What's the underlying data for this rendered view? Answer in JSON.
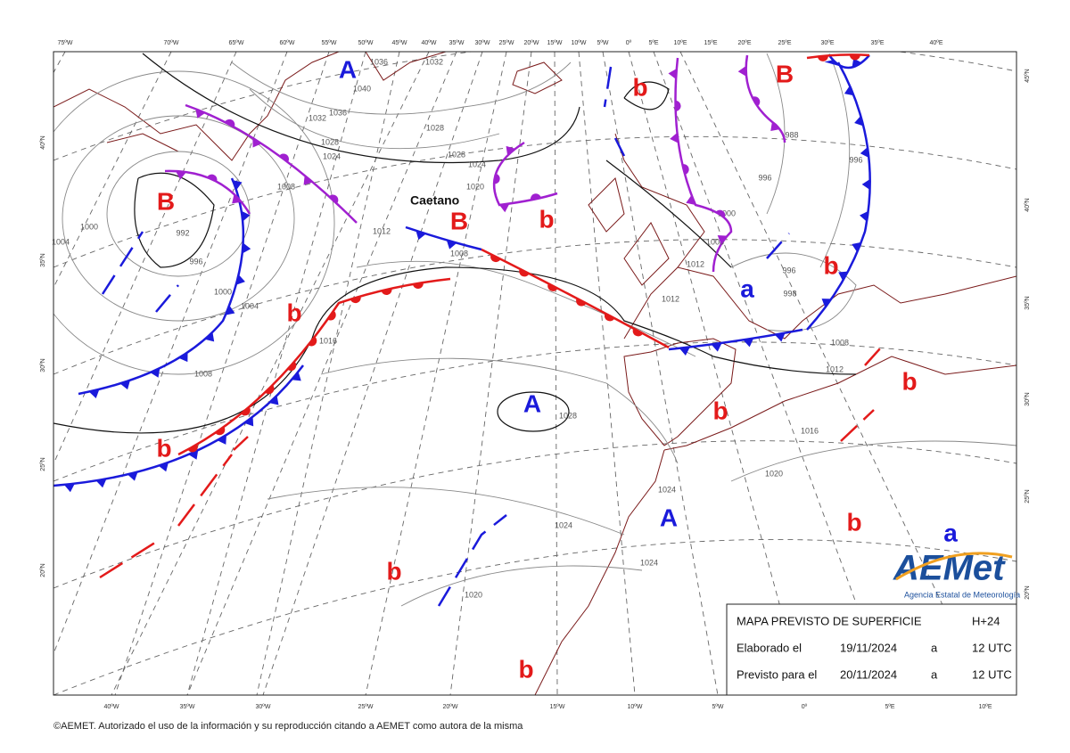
{
  "top_axis": [
    "75ºW",
    "70ºW",
    "65ºW",
    "60ºW",
    "55ºW",
    "50ºW",
    "45ºW",
    "40ºW",
    "35ºW",
    "30ºW",
    "25ºW",
    "20ºW",
    "15ºW",
    "10ºW",
    "5ºW",
    "0º",
    "5ºE",
    "10ºE",
    "15ºE",
    "20ºE",
    "25ºE",
    "30ºE",
    "35ºE",
    "40ºE"
  ],
  "bottom_axis": [
    "40ºW",
    "35ºW",
    "30ºW",
    "25ºW",
    "20ºW",
    "15ºW",
    "10ºW",
    "5ºW",
    "0º",
    "5ºE",
    "10ºE"
  ],
  "left_axis": [
    "40ºN",
    "35ºN",
    "30ºN",
    "25ºN",
    "20ºN"
  ],
  "right_axis": [
    "45ºN",
    "40ºN",
    "35ºN",
    "30ºN",
    "25ºN",
    "20ºN"
  ],
  "systems": [
    {
      "label": "A",
      "color": "#1a1adb"
    },
    {
      "label": "B",
      "color": "#e31a1a"
    },
    {
      "label": "B",
      "color": "#e31a1a"
    },
    {
      "label": "b",
      "color": "#e31a1a"
    },
    {
      "label": "B",
      "color": "#e31a1a"
    },
    {
      "label": "b",
      "color": "#e31a1a"
    },
    {
      "label": "b",
      "color": "#e31a1a"
    },
    {
      "label": "a",
      "color": "#1a1adb"
    },
    {
      "label": "b",
      "color": "#e31a1a"
    },
    {
      "label": "b",
      "color": "#e31a1a"
    },
    {
      "label": "b",
      "color": "#e31a1a"
    },
    {
      "label": "A",
      "color": "#1a1adb"
    },
    {
      "label": "b",
      "color": "#e31a1a"
    },
    {
      "label": "A",
      "color": "#1a1adb"
    },
    {
      "label": "b",
      "color": "#e31a1a"
    },
    {
      "label": "a",
      "color": "#1a1adb"
    },
    {
      "label": "b",
      "color": "#e31a1a"
    },
    {
      "label": "b",
      "color": "#e31a1a"
    }
  ],
  "storm_name": "Caetano",
  "isobar_labels": [
    "1036",
    "1032",
    "1040",
    "1036",
    "1032",
    "1028",
    "1028",
    "1024",
    "1028",
    "1024",
    "1020",
    "1008",
    "1012",
    "1008",
    "1000",
    "992",
    "996",
    "1004",
    "1000",
    "1004",
    "1016",
    "1008",
    "1028",
    "1024",
    "1020",
    "1024",
    "1024",
    "1020",
    "1016",
    "1012",
    "1008",
    "996",
    "988",
    "996",
    "1012",
    "1008",
    "996",
    "998",
    "1000",
    "1012"
  ],
  "info_box": {
    "title": "MAPA PREVISTO DE SUPERFICIE",
    "step": "H+24",
    "rows": [
      [
        "Elaborado el",
        "19/11/2024",
        "a",
        "12 UTC"
      ],
      [
        "Previsto para el",
        "20/11/2024",
        "a",
        "12 UTC"
      ]
    ]
  },
  "logo": {
    "name": "AEMet",
    "subtitle": "Agencia Estatal de Meteorología"
  },
  "footer": "©AEMET. Autorizado el uso de la información y su reproducción citando a AEMET como autora de la misma"
}
